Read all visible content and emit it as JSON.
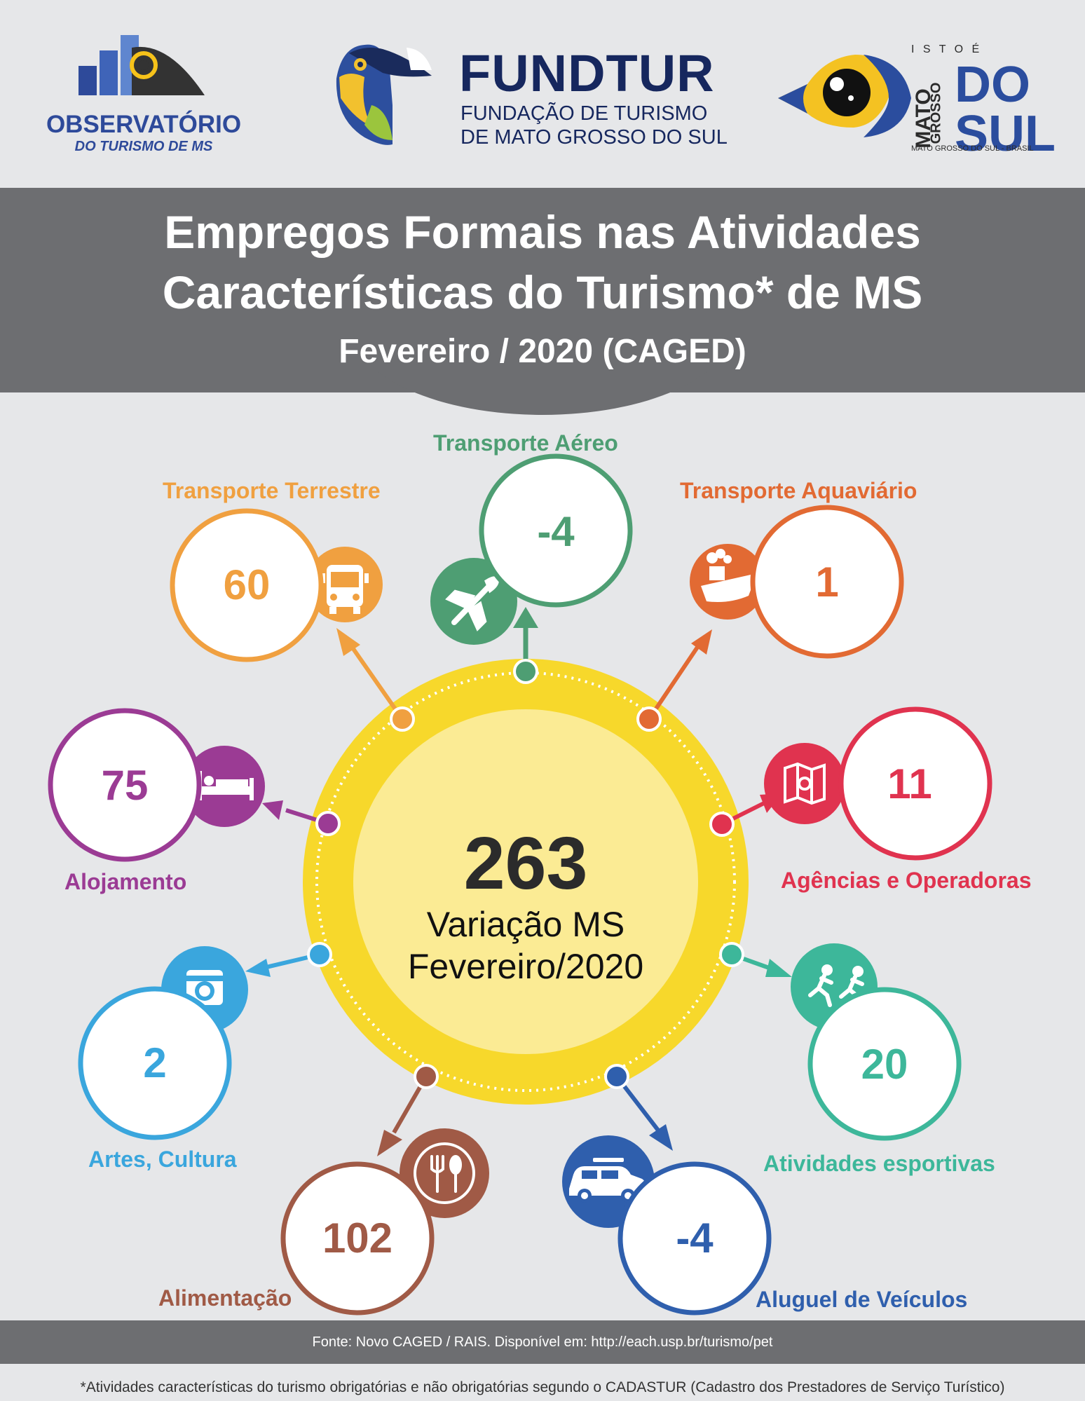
{
  "header": {
    "observatorio": {
      "name": "OBSERVATÓRIO",
      "subtitle": "DO TURISMO DE MS"
    },
    "fundtur": {
      "name": "FUNDTUR",
      "subtitle_line1": "FUNDAÇÃO DE TURISMO",
      "subtitle_line2": "DE MATO GROSSO DO SUL"
    },
    "ms_brand": {
      "tagline": "I S T O   É",
      "vertical_top": "MATO",
      "vertical_bottom": "GROSSO",
      "big_line1": "DO",
      "big_line2": "SUL",
      "caption": "MATO GROSSO DO SUL - BRASIL"
    }
  },
  "title": {
    "line1": "Empregos Formais nas Atividades",
    "line2": "Características do Turismo* de MS",
    "line3": "Fevereiro / 2020 (CAGED)"
  },
  "center": {
    "value": "263",
    "label_line1": "Variação MS",
    "label_line2": "Fevereiro/2020"
  },
  "activities": [
    {
      "label": "Transporte Aéreo",
      "value": "-4",
      "color": "#4e9e73",
      "icon": "airplane-icon"
    },
    {
      "label": "Transporte Terrestre",
      "value": "60",
      "color": "#f0a040",
      "icon": "bus-icon"
    },
    {
      "label": "Transporte Aquaviário",
      "value": "1",
      "color": "#e26a33",
      "icon": "ship-icon"
    },
    {
      "label": "Alojamento",
      "value": "75",
      "color": "#9b3b94",
      "icon": "bed-icon"
    },
    {
      "label": "Agências e Operadoras",
      "value": "11",
      "color": "#e0334f",
      "icon": "map-icon"
    },
    {
      "label": "Artes, Cultura",
      "value": "2",
      "color": "#3aa6dd",
      "icon": "camera-icon"
    },
    {
      "label": "Atividades esportivas",
      "value": "20",
      "color": "#3db79a",
      "icon": "runners-icon"
    },
    {
      "label": "Alimentação",
      "value": "102",
      "color": "#a05a46",
      "icon": "cutlery-icon"
    },
    {
      "label": "Aluguel de Veículos",
      "value": "-4",
      "color": "#2f5fad",
      "icon": "car-icon"
    }
  ],
  "colors": {
    "center_ring": "#f7d82b",
    "center_fill": "#fbeb94",
    "band": "#6d6e71",
    "background": "#e6e7e9"
  },
  "footer": {
    "source": "Fonte: Novo CAGED / RAIS. Disponível em: http://each.usp.br/turismo/pet"
  },
  "footnote": "*Atividades características do turismo obrigatórias e não obrigatórias segundo o CADASTUR (Cadastro dos Prestadores de Serviço Turístico)"
}
